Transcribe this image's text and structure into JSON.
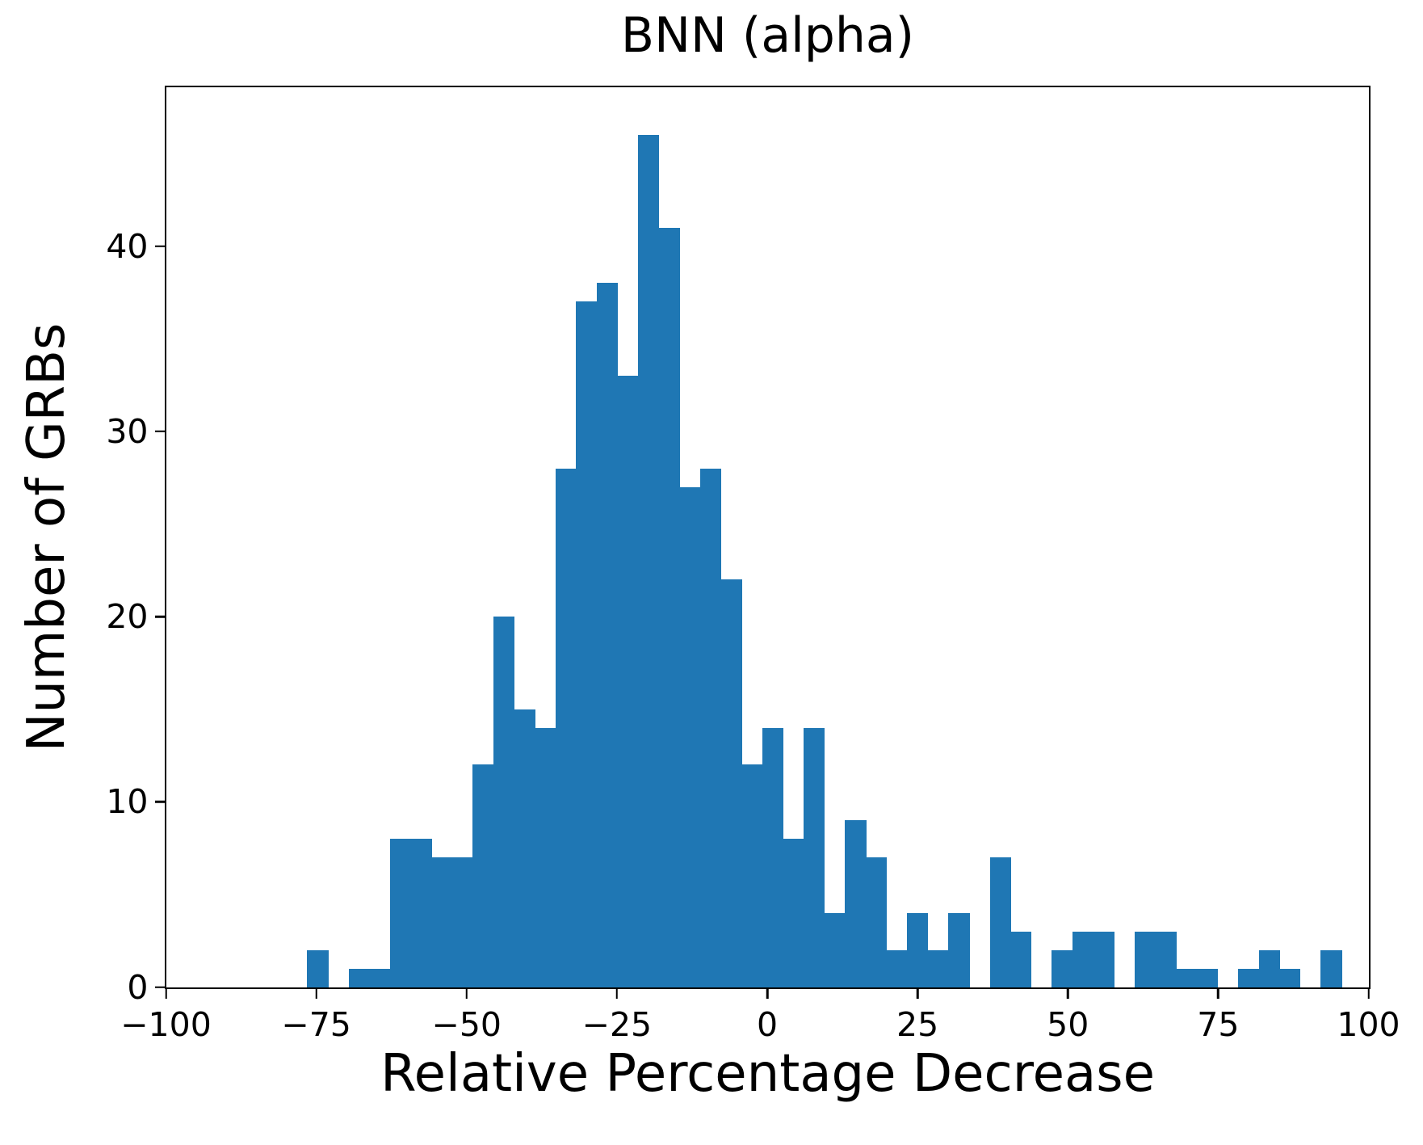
{
  "title": "BNN (alpha)",
  "xlabel": "Relative Percentage Decrease",
  "ylabel": "Number of GRBs",
  "chart_data": {
    "type": "bar",
    "subtype": "histogram",
    "title": "BNN (alpha)",
    "xlabel": "Relative Percentage Decrease",
    "ylabel": "Number of GRBs",
    "bar_color": "#1f77b4",
    "background_color": "#ffffff",
    "grid": false,
    "legend": false,
    "xlim": [
      -100,
      100
    ],
    "ylim": [
      0,
      48.6
    ],
    "bin_start": -76.5,
    "bin_width": 3.44,
    "n_bins": 50,
    "counts": [
      2,
      0,
      1,
      1,
      8,
      8,
      7,
      7,
      12,
      20,
      15,
      14,
      28,
      37,
      38,
      33,
      46,
      41,
      27,
      28,
      22,
      12,
      14,
      8,
      14,
      4,
      9,
      7,
      2,
      4,
      2,
      4,
      0,
      7,
      3,
      0,
      2,
      3,
      3,
      0,
      3,
      3,
      1,
      1,
      0,
      1,
      2,
      1,
      0,
      2
    ],
    "x_ticks": {
      "values": [
        -100,
        -75,
        -50,
        -25,
        0,
        25,
        50,
        75,
        100
      ],
      "labels": [
        "−100",
        "−75",
        "−50",
        "−25",
        "0",
        "25",
        "50",
        "75",
        "100"
      ]
    },
    "y_ticks": {
      "values": [
        0,
        10,
        20,
        30,
        40
      ],
      "labels": [
        "0",
        "10",
        "20",
        "30",
        "40"
      ]
    }
  }
}
